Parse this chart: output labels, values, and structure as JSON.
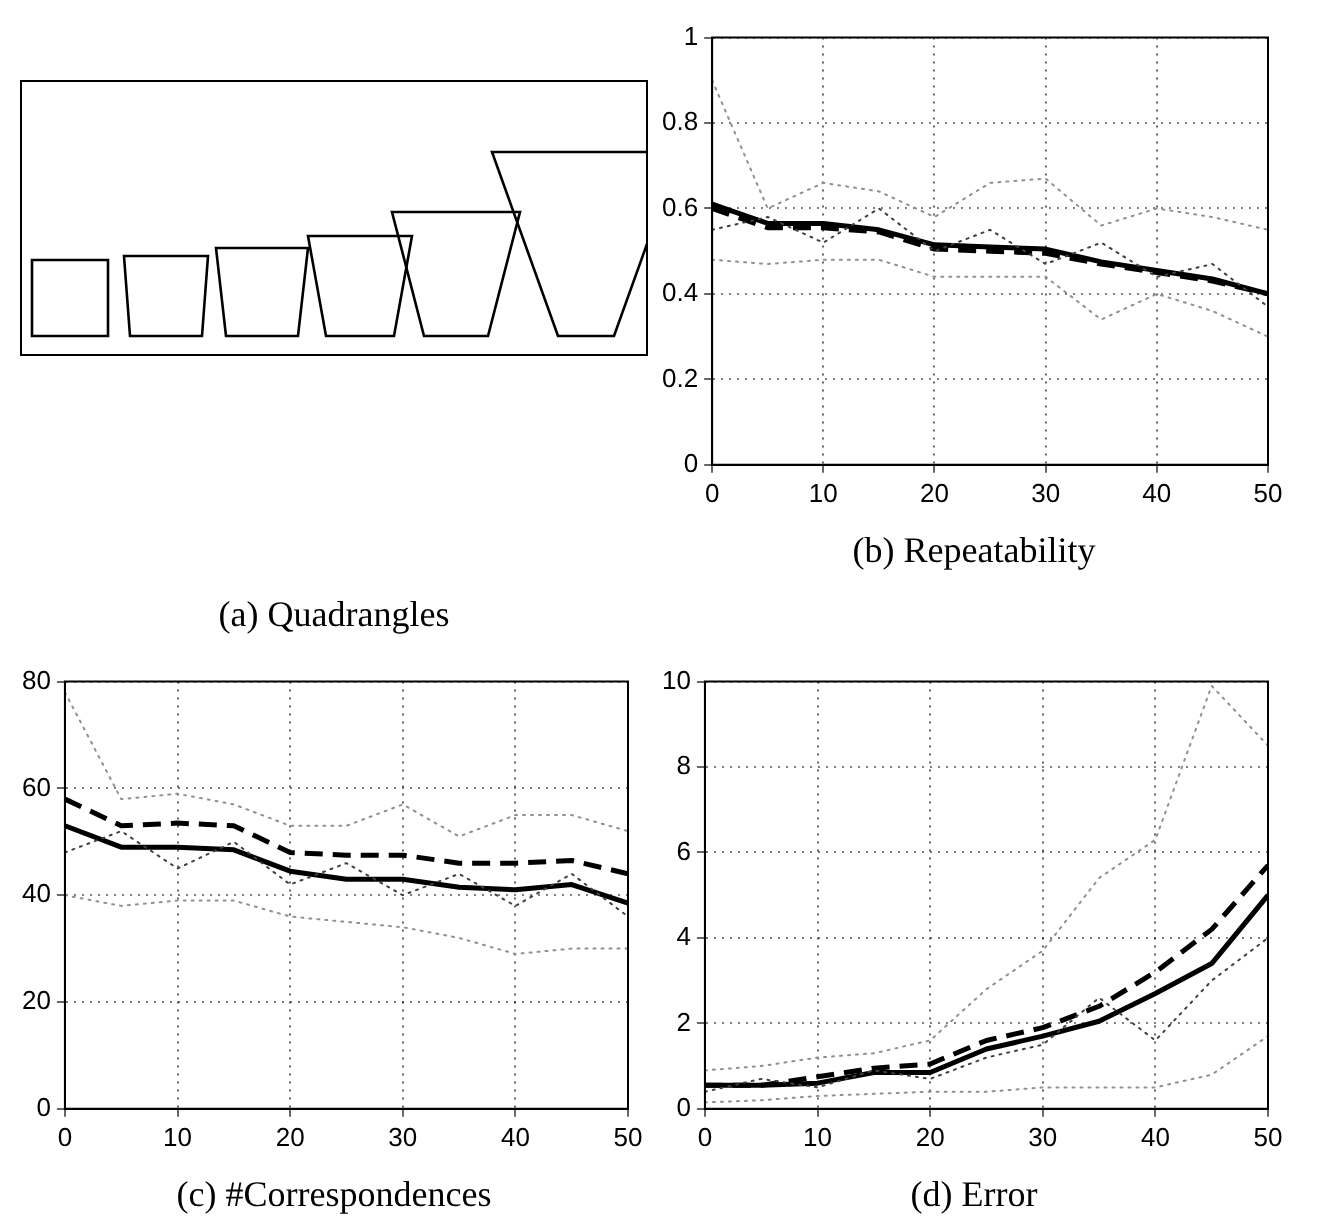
{
  "chart_data": [
    {
      "type": "other",
      "title": "(a) Quadrangles"
    },
    {
      "type": "line",
      "title": "(b) Repeatability",
      "x": [
        0,
        5,
        10,
        15,
        20,
        25,
        30,
        35,
        40,
        45,
        50
      ],
      "xlim": [
        0,
        50
      ],
      "xticks": [
        0,
        10,
        20,
        30,
        40,
        50
      ],
      "ylim": [
        0,
        1
      ],
      "yticks": [
        0,
        0.2,
        0.4,
        0.6,
        0.8,
        1
      ],
      "grid": true,
      "marker": "none",
      "series": [
        {
          "color": "#909090",
          "line_style": "dotted",
          "values": [
            0.9,
            0.6,
            0.66,
            0.64,
            0.58,
            0.66,
            0.67,
            0.56,
            0.6,
            0.58,
            0.55
          ]
        },
        {
          "color": "#909090",
          "line_style": "dotted",
          "values": [
            0.48,
            0.47,
            0.48,
            0.48,
            0.44,
            0.44,
            0.44,
            0.34,
            0.4,
            0.36,
            0.3
          ]
        },
        {
          "color": "#404040",
          "line_style": "dotted",
          "values": [
            0.55,
            0.58,
            0.52,
            0.6,
            0.5,
            0.55,
            0.47,
            0.52,
            0.44,
            0.47,
            0.37
          ]
        },
        {
          "color": "#000000",
          "line_style": "dashed",
          "values": [
            0.6,
            0.555,
            0.555,
            0.545,
            0.505,
            0.5,
            0.495,
            0.47,
            0.45,
            0.43,
            0.4
          ]
        },
        {
          "color": "#000000",
          "line_style": "solid",
          "values": [
            0.61,
            0.565,
            0.565,
            0.55,
            0.515,
            0.51,
            0.505,
            0.475,
            0.455,
            0.435,
            0.4
          ]
        }
      ]
    },
    {
      "type": "line",
      "title": "(c) #Correspondences",
      "x": [
        0,
        5,
        10,
        15,
        20,
        25,
        30,
        35,
        40,
        45,
        50
      ],
      "xlim": [
        0,
        50
      ],
      "xticks": [
        0,
        10,
        20,
        30,
        40,
        50
      ],
      "ylim": [
        0,
        80
      ],
      "yticks": [
        0,
        20,
        40,
        60,
        80
      ],
      "grid": true,
      "marker": "none",
      "series": [
        {
          "color": "#909090",
          "line_style": "dotted",
          "values": [
            78,
            58,
            59,
            57,
            53,
            53,
            57,
            51,
            55,
            55,
            52
          ]
        },
        {
          "color": "#909090",
          "line_style": "dotted",
          "values": [
            40,
            38,
            39,
            39,
            36,
            35,
            34,
            32,
            29,
            30,
            30
          ]
        },
        {
          "color": "#404040",
          "line_style": "dotted",
          "values": [
            48,
            52,
            45,
            50,
            42,
            46,
            40,
            44,
            38,
            44,
            36
          ]
        },
        {
          "color": "#000000",
          "line_style": "dashed",
          "values": [
            58,
            53,
            53.5,
            53,
            48,
            47.5,
            47.5,
            46,
            46,
            46.5,
            44
          ]
        },
        {
          "color": "#000000",
          "line_style": "solid",
          "values": [
            53,
            49,
            49,
            48.5,
            44.5,
            43,
            43,
            41.5,
            41,
            42,
            38.5
          ]
        }
      ]
    },
    {
      "type": "line",
      "title": "(d) Error",
      "x": [
        0,
        5,
        10,
        15,
        20,
        25,
        30,
        35,
        40,
        45,
        50
      ],
      "xlim": [
        0,
        50
      ],
      "xticks": [
        0,
        10,
        20,
        30,
        40,
        50
      ],
      "ylim": [
        0,
        10
      ],
      "yticks": [
        0,
        2,
        4,
        6,
        8,
        10
      ],
      "grid": true,
      "marker": "none",
      "series": [
        {
          "color": "#909090",
          "line_style": "dotted",
          "values": [
            0.9,
            1,
            1.2,
            1.3,
            1.6,
            2.8,
            3.7,
            5.4,
            6.3,
            9.9,
            8.5
          ]
        },
        {
          "color": "#909090",
          "line_style": "dotted",
          "values": [
            0.15,
            0.2,
            0.3,
            0.35,
            0.4,
            0.4,
            0.5,
            0.5,
            0.5,
            0.8,
            1.7
          ]
        },
        {
          "color": "#404040",
          "line_style": "dotted",
          "values": [
            0.4,
            0.7,
            0.5,
            0.9,
            0.7,
            1.2,
            1.5,
            2.6,
            1.6,
            3,
            4
          ]
        },
        {
          "color": "#000000",
          "line_style": "dashed",
          "values": [
            0.55,
            0.55,
            0.75,
            0.95,
            1.05,
            1.6,
            1.9,
            2.4,
            3.2,
            4.2,
            5.7
          ]
        },
        {
          "color": "#000000",
          "line_style": "solid",
          "values": [
            0.55,
            0.55,
            0.6,
            0.85,
            0.85,
            1.4,
            1.7,
            2.05,
            2.7,
            3.4,
            5
          ]
        }
      ]
    }
  ]
}
